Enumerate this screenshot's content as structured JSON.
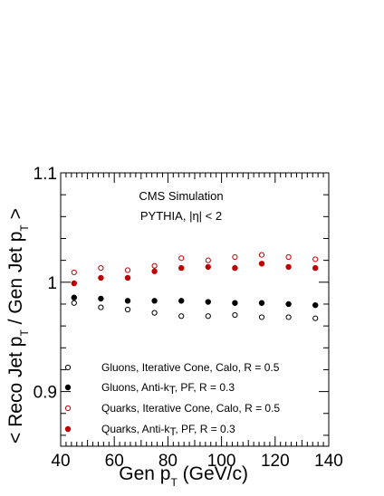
{
  "chart_data": {
    "type": "scatter",
    "xlabel_main": "Gen p",
    "xlabel_sub": "T",
    "xlabel_unit": " (GeV/c)",
    "ylabel_parts": [
      "< Reco Jet p",
      "T",
      " / Gen Jet p",
      "T",
      " >"
    ],
    "annotations": [
      "CMS Simulation",
      "PYTHIA, |η| < 2"
    ],
    "xlim": [
      40,
      140
    ],
    "ylim": [
      0.85,
      1.1
    ],
    "x_ticks": [
      "40",
      "60",
      "80",
      "100",
      "120",
      "140"
    ],
    "y_ticks": [
      "0.9",
      "1",
      "1.1"
    ],
    "x": [
      45,
      55,
      65,
      75,
      85,
      95,
      105,
      115,
      125,
      135
    ],
    "series": [
      {
        "legend_parts": [
          "Gluons, Iterative Cone, Calo, R = 0.5"
        ],
        "color": "#000000",
        "filled": false,
        "values": [
          0.981,
          0.977,
          0.975,
          0.972,
          0.969,
          0.969,
          0.97,
          0.968,
          0.968,
          0.967
        ]
      },
      {
        "legend_parts": [
          "Gluons, Anti-k",
          "T",
          ", PF, R = 0.3"
        ],
        "color": "#000000",
        "filled": true,
        "values": [
          0.986,
          0.985,
          0.983,
          0.983,
          0.983,
          0.982,
          0.981,
          0.981,
          0.98,
          0.979
        ]
      },
      {
        "legend_parts": [
          "Quarks, Iterative Cone, Calo, R = 0.5"
        ],
        "color": "#c00000",
        "filled": false,
        "values": [
          1.009,
          1.013,
          1.011,
          1.015,
          1.022,
          1.02,
          1.023,
          1.025,
          1.023,
          1.021
        ]
      },
      {
        "legend_parts": [
          "Quarks, Anti-k",
          "T",
          ", PF, R = 0.3"
        ],
        "color": "#c00000",
        "filled": true,
        "values": [
          0.999,
          1.004,
          1.004,
          1.01,
          1.013,
          1.014,
          1.013,
          1.017,
          1.014,
          1.013
        ]
      }
    ]
  }
}
